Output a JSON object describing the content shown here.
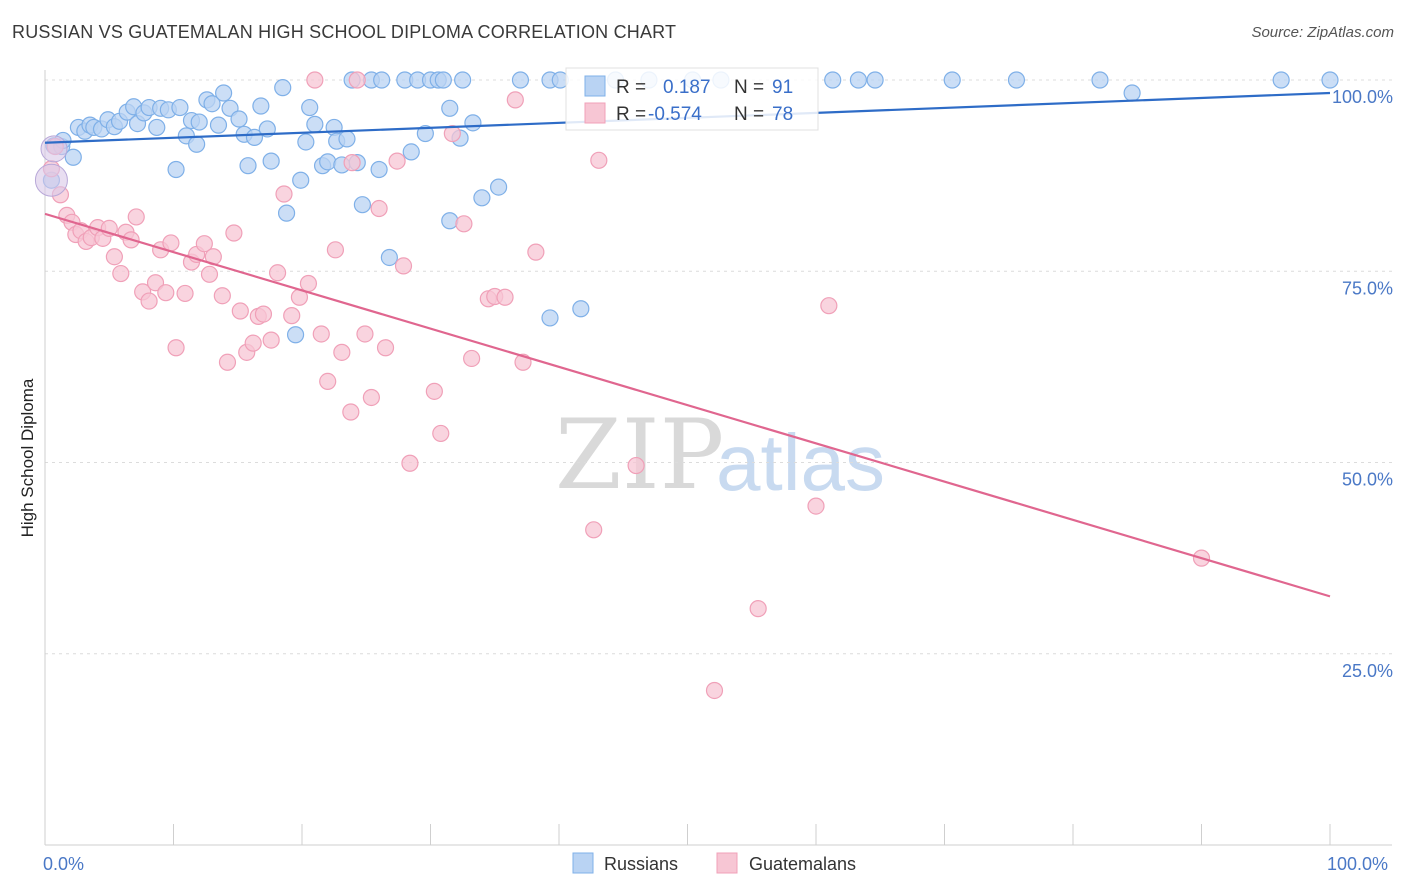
{
  "chart_data": {
    "type": "scatter",
    "title": "RUSSIAN VS GUATEMALAN HIGH SCHOOL DIPLOMA CORRELATION CHART",
    "source": "Source: ZipAtlas.com",
    "xlabel": "",
    "ylabel": "High School Diploma",
    "xlim": [
      0,
      100
    ],
    "ylim": [
      0,
      100
    ],
    "x_tick_labels": [
      "0.0%",
      "100.0%"
    ],
    "y_ticks": [
      {
        "value": 100,
        "label": "100.0%"
      },
      {
        "value": 75,
        "label": "75.0%"
      },
      {
        "value": 50,
        "label": "50.0%"
      },
      {
        "value": 25,
        "label": "25.0%"
      }
    ],
    "watermark": {
      "zip": "ZIP",
      "atlas": "atlas"
    },
    "legend": {
      "r_label": "R =",
      "n_label": "N =",
      "entries": [
        {
          "series": "Russians",
          "r": "0.187",
          "n": "91"
        },
        {
          "series": "Guatemalans",
          "r": "-0.574",
          "n": "78"
        }
      ]
    },
    "series": [
      {
        "name": "Russians",
        "color": "#7fb0e8",
        "fill": "#b9d3f3",
        "line_color": "#2e6cc7",
        "trend": {
          "x": [
            0,
            100
          ],
          "y": [
            91.8,
            98.3
          ]
        },
        "points": [
          [
            0.5,
            86.9
          ],
          [
            0.7,
            91.4
          ],
          [
            1.3,
            91.3
          ],
          [
            1.4,
            92.1
          ],
          [
            2.2,
            89.9
          ],
          [
            2.6,
            93.8
          ],
          [
            3.1,
            93.3
          ],
          [
            3.5,
            94.1
          ],
          [
            3.8,
            93.8
          ],
          [
            4.4,
            93.6
          ],
          [
            4.9,
            94.8
          ],
          [
            5.4,
            93.9
          ],
          [
            5.8,
            94.6
          ],
          [
            6.4,
            95.8
          ],
          [
            6.9,
            96.5
          ],
          [
            7.2,
            94.3
          ],
          [
            7.7,
            95.7
          ],
          [
            8.1,
            96.4
          ],
          [
            8.7,
            93.8
          ],
          [
            9.0,
            96.3
          ],
          [
            9.6,
            96.1
          ],
          [
            10.2,
            88.3
          ],
          [
            10.5,
            96.4
          ],
          [
            11.0,
            92.7
          ],
          [
            11.4,
            94.7
          ],
          [
            11.8,
            91.6
          ],
          [
            12.0,
            94.5
          ],
          [
            12.6,
            97.4
          ],
          [
            13.0,
            96.9
          ],
          [
            13.5,
            94.1
          ],
          [
            13.9,
            98.3
          ],
          [
            14.4,
            96.3
          ],
          [
            15.1,
            94.9
          ],
          [
            15.5,
            92.9
          ],
          [
            15.8,
            88.8
          ],
          [
            16.3,
            92.5
          ],
          [
            16.8,
            96.6
          ],
          [
            17.3,
            93.6
          ],
          [
            17.6,
            89.4
          ],
          [
            18.5,
            99.0
          ],
          [
            18.8,
            82.6
          ],
          [
            19.5,
            66.7
          ],
          [
            19.9,
            86.9
          ],
          [
            20.3,
            91.9
          ],
          [
            20.6,
            96.4
          ],
          [
            21.0,
            94.2
          ],
          [
            21.6,
            88.8
          ],
          [
            22.0,
            89.3
          ],
          [
            22.5,
            93.8
          ],
          [
            22.7,
            92.0
          ],
          [
            23.1,
            88.9
          ],
          [
            23.5,
            92.3
          ],
          [
            23.9,
            100.0
          ],
          [
            24.3,
            89.2
          ],
          [
            24.7,
            83.7
          ],
          [
            25.4,
            100.0
          ],
          [
            26.0,
            88.3
          ],
          [
            26.2,
            100.0
          ],
          [
            26.8,
            76.8
          ],
          [
            28.0,
            100.0
          ],
          [
            28.5,
            90.6
          ],
          [
            29.0,
            100.0
          ],
          [
            29.6,
            93.0
          ],
          [
            30.0,
            100.0
          ],
          [
            30.6,
            100.0
          ],
          [
            31.0,
            100.0
          ],
          [
            31.5,
            81.6
          ],
          [
            32.3,
            92.4
          ],
          [
            32.5,
            100.0
          ],
          [
            33.3,
            94.4
          ],
          [
            34.0,
            84.6
          ],
          [
            35.3,
            86.0
          ],
          [
            37.0,
            100.0
          ],
          [
            39.3,
            100.0
          ],
          [
            40.1,
            100.0
          ],
          [
            44.4,
            100.0
          ],
          [
            47.0,
            100.0
          ],
          [
            50.4,
            100.0
          ],
          [
            52.6,
            100.0
          ],
          [
            61.3,
            100.0
          ],
          [
            63.3,
            100.0
          ],
          [
            64.6,
            100.0
          ],
          [
            70.6,
            100.0
          ],
          [
            75.6,
            100.0
          ],
          [
            82.1,
            100.0
          ],
          [
            84.6,
            98.3
          ],
          [
            96.2,
            100.0
          ],
          [
            100.0,
            100.0
          ],
          [
            31.5,
            96.3
          ],
          [
            39.3,
            68.9
          ],
          [
            41.7,
            70.1
          ]
        ]
      },
      {
        "name": "Guatemalans",
        "color": "#f0a0b8",
        "fill": "#f7c6d4",
        "line_color": "#e0668f",
        "trend": {
          "x": [
            0,
            100
          ],
          "y": [
            82.5,
            32.5
          ]
        },
        "points": [
          [
            0.5,
            88.4
          ],
          [
            0.8,
            91.3
          ],
          [
            1.2,
            85.0
          ],
          [
            1.7,
            82.3
          ],
          [
            2.1,
            81.4
          ],
          [
            2.4,
            79.8
          ],
          [
            2.8,
            80.3
          ],
          [
            3.2,
            78.9
          ],
          [
            3.6,
            79.4
          ],
          [
            4.1,
            80.7
          ],
          [
            4.5,
            79.3
          ],
          [
            5.0,
            80.6
          ],
          [
            5.4,
            76.9
          ],
          [
            5.9,
            74.7
          ],
          [
            6.3,
            80.1
          ],
          [
            6.7,
            79.1
          ],
          [
            7.1,
            82.1
          ],
          [
            7.6,
            72.3
          ],
          [
            8.1,
            71.1
          ],
          [
            8.6,
            73.5
          ],
          [
            9.0,
            77.8
          ],
          [
            9.4,
            72.2
          ],
          [
            9.8,
            78.7
          ],
          [
            10.2,
            65.0
          ],
          [
            10.9,
            72.1
          ],
          [
            11.4,
            76.2
          ],
          [
            11.8,
            77.2
          ],
          [
            12.4,
            78.6
          ],
          [
            12.8,
            74.6
          ],
          [
            13.1,
            76.9
          ],
          [
            13.8,
            71.8
          ],
          [
            14.2,
            63.1
          ],
          [
            14.7,
            80.0
          ],
          [
            15.2,
            69.8
          ],
          [
            15.7,
            64.4
          ],
          [
            16.2,
            65.6
          ],
          [
            16.6,
            69.1
          ],
          [
            17.0,
            69.4
          ],
          [
            17.6,
            66.0
          ],
          [
            18.1,
            74.8
          ],
          [
            18.6,
            85.1
          ],
          [
            19.2,
            69.2
          ],
          [
            19.8,
            71.6
          ],
          [
            20.5,
            73.4
          ],
          [
            21.0,
            100.0
          ],
          [
            21.5,
            66.8
          ],
          [
            22.0,
            60.6
          ],
          [
            22.6,
            77.8
          ],
          [
            23.1,
            64.4
          ],
          [
            23.8,
            56.6
          ],
          [
            24.3,
            100.0
          ],
          [
            24.9,
            66.8
          ],
          [
            25.4,
            58.5
          ],
          [
            26.0,
            83.2
          ],
          [
            26.5,
            65.0
          ],
          [
            27.4,
            89.4
          ],
          [
            27.9,
            75.7
          ],
          [
            28.4,
            49.9
          ],
          [
            30.3,
            59.3
          ],
          [
            30.8,
            53.8
          ],
          [
            31.7,
            93.0
          ],
          [
            32.6,
            81.2
          ],
          [
            33.2,
            63.6
          ],
          [
            34.5,
            71.4
          ],
          [
            35.0,
            71.7
          ],
          [
            36.6,
            97.4
          ],
          [
            37.2,
            63.1
          ],
          [
            38.2,
            77.5
          ],
          [
            42.7,
            41.2
          ],
          [
            43.1,
            89.5
          ],
          [
            46.0,
            49.6
          ],
          [
            52.1,
            20.2
          ],
          [
            55.5,
            30.9
          ],
          [
            60.0,
            44.3
          ],
          [
            61.0,
            70.5
          ],
          [
            90.0,
            37.5
          ],
          [
            23.9,
            89.2
          ],
          [
            35.8,
            71.6
          ]
        ]
      }
    ]
  }
}
